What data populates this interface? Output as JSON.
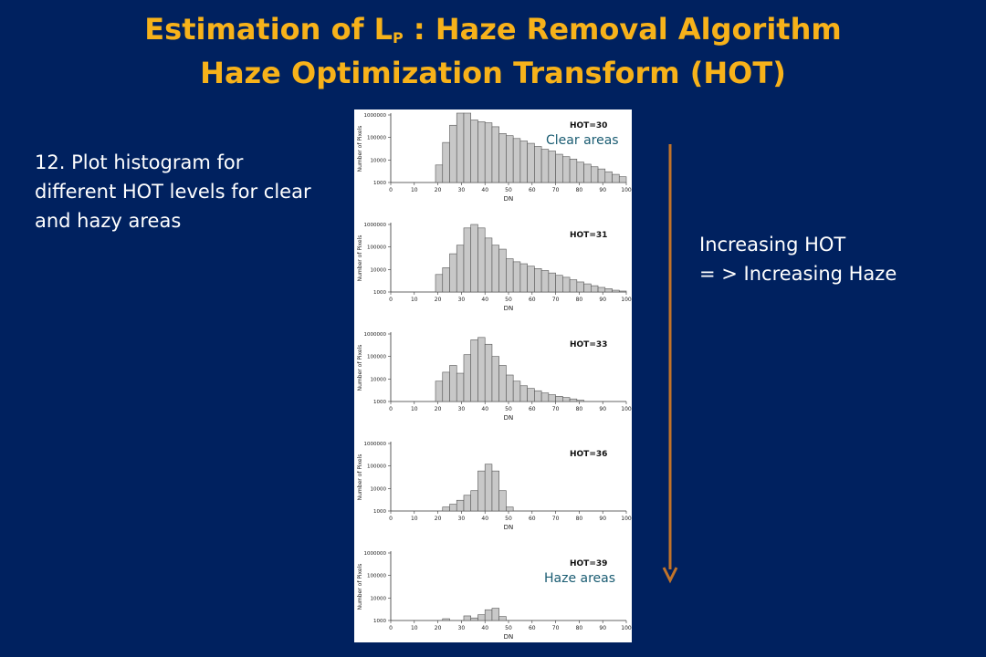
{
  "title": {
    "line1_prefix": "Estimation of L",
    "line1_sub": "P",
    "line1_suffix": " : Haze Removal Algorithm",
    "line2": "Haze Optimization Transform (HOT)"
  },
  "step_text": "12. Plot histogram for different HOT levels for clear and hazy areas",
  "increasing_text": {
    "line1": "Increasing HOT",
    "line2": "= > Increasing Haze"
  },
  "labels": {
    "clear": "Clear areas",
    "haze": "Haze areas"
  },
  "colors": {
    "background": "#00215f",
    "title": "#f7b21a",
    "arrow": "#c0732a",
    "bar_fill": "#c8c8c8",
    "area_label": "#1a5c72"
  },
  "chart_data": [
    {
      "type": "bar",
      "annotation": "HOT=30",
      "xlabel": "DN",
      "ylabel": "Number of Pixels",
      "y_scale": "log",
      "ylim": [
        1000,
        1000000
      ],
      "y_ticks": [
        "1000",
        "10000",
        "100000",
        "1000000"
      ],
      "xlim": [
        0,
        100
      ],
      "x_ticks": [
        "0",
        "10",
        "20",
        "30",
        "40",
        "50",
        "60",
        "70",
        "80",
        "90",
        "100"
      ],
      "bin_starts": [
        19,
        22,
        25,
        28,
        31,
        34,
        37,
        40,
        43,
        46,
        49,
        52,
        55,
        58,
        61,
        64,
        67,
        70,
        73,
        76,
        79,
        82,
        85,
        88,
        91,
        94,
        97
      ],
      "values": [
        6000,
        60000,
        350000,
        1300000,
        1300000,
        600000,
        500000,
        450000,
        300000,
        150000,
        120000,
        90000,
        70000,
        55000,
        40000,
        30000,
        25000,
        18000,
        14000,
        11000,
        8000,
        6500,
        5000,
        4000,
        3000,
        2300,
        1800
      ]
    },
    {
      "type": "bar",
      "annotation": "HOT=31",
      "xlabel": "DN",
      "ylabel": "Number of Pixels",
      "y_scale": "log",
      "ylim": [
        1000,
        1000000
      ],
      "y_ticks": [
        "1000",
        "10000",
        "100000",
        "1000000"
      ],
      "xlim": [
        0,
        100
      ],
      "x_ticks": [
        "0",
        "10",
        "20",
        "30",
        "40",
        "50",
        "60",
        "70",
        "80",
        "90",
        "100"
      ],
      "bin_starts": [
        19,
        22,
        25,
        28,
        31,
        34,
        37,
        40,
        43,
        46,
        49,
        52,
        55,
        58,
        61,
        64,
        67,
        70,
        73,
        76,
        79,
        82,
        85,
        88,
        91,
        94,
        97
      ],
      "values": [
        6000,
        12000,
        50000,
        120000,
        700000,
        1000000,
        700000,
        250000,
        120000,
        80000,
        30000,
        22000,
        18000,
        14000,
        11000,
        9000,
        7000,
        5500,
        4500,
        3500,
        2800,
        2300,
        1900,
        1600,
        1400,
        1200,
        1100
      ]
    },
    {
      "type": "bar",
      "annotation": "HOT=33",
      "xlabel": "DN",
      "ylabel": "Number of Pixels",
      "y_scale": "log",
      "ylim": [
        1000,
        1000000
      ],
      "y_ticks": [
        "1000",
        "10000",
        "100000",
        "1000000"
      ],
      "xlim": [
        0,
        100
      ],
      "x_ticks": [
        "0",
        "10",
        "20",
        "30",
        "40",
        "50",
        "60",
        "70",
        "80",
        "90",
        "100"
      ],
      "bin_starts": [
        19,
        22,
        25,
        28,
        31,
        34,
        37,
        40,
        43,
        46,
        49,
        52,
        55,
        58,
        61,
        64,
        67,
        70,
        73,
        76,
        79
      ],
      "values": [
        8000,
        20000,
        40000,
        18000,
        120000,
        550000,
        700000,
        350000,
        100000,
        40000,
        15000,
        8000,
        5000,
        3800,
        3000,
        2400,
        2000,
        1700,
        1500,
        1300,
        1150
      ]
    },
    {
      "type": "bar",
      "annotation": "HOT=36",
      "xlabel": "DN",
      "ylabel": "Number of Pixels",
      "y_scale": "log",
      "ylim": [
        1000,
        1000000
      ],
      "y_ticks": [
        "1000",
        "10000",
        "100000",
        "1000000"
      ],
      "xlim": [
        0,
        100
      ],
      "x_ticks": [
        "0",
        "10",
        "20",
        "30",
        "40",
        "50",
        "60",
        "70",
        "80",
        "90",
        "100"
      ],
      "bin_starts": [
        22,
        25,
        28,
        31,
        34,
        37,
        40,
        43,
        46,
        49
      ],
      "values": [
        1500,
        2000,
        3000,
        5000,
        8000,
        60000,
        120000,
        60000,
        8000,
        1500
      ]
    },
    {
      "type": "bar",
      "annotation": "HOT=39",
      "xlabel": "DN",
      "ylabel": "Number of Pixels",
      "y_scale": "log",
      "ylim": [
        1000,
        1000000
      ],
      "y_ticks": [
        "1000",
        "10000",
        "100000",
        "1000000"
      ],
      "xlim": [
        0,
        100
      ],
      "x_ticks": [
        "0",
        "10",
        "20",
        "30",
        "40",
        "50",
        "60",
        "70",
        "80",
        "90",
        "100"
      ],
      "bin_starts": [
        22,
        31,
        34,
        37,
        40,
        43,
        46
      ],
      "values": [
        1200,
        1600,
        1300,
        1800,
        3000,
        3500,
        1500
      ]
    }
  ]
}
